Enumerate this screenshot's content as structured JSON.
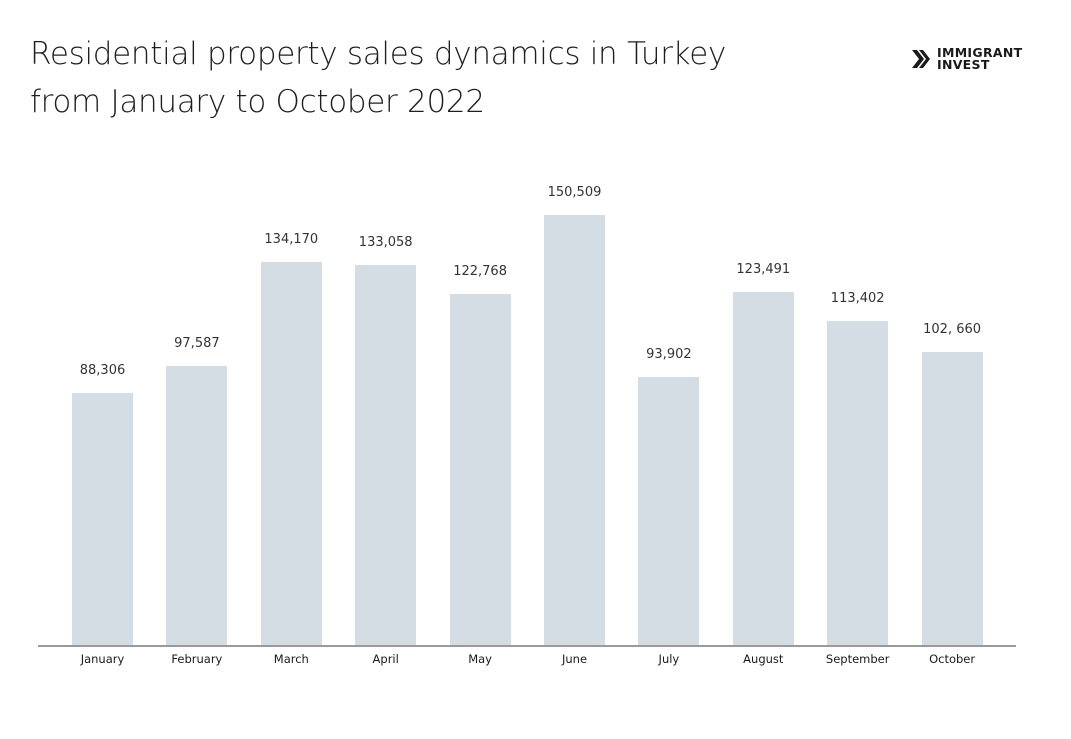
{
  "title": {
    "line1": "Residential property sales dynamics in Turkey",
    "line2": "from January to October 2022"
  },
  "logo": {
    "icon": "double-chevron-right-icon",
    "line1": "IMMIGRANT",
    "line2": "INVEST"
  },
  "colors": {
    "bar": "#d3dde3",
    "axis": "#9a9a9a",
    "text": "#1e1e1e"
  },
  "chart_data": {
    "type": "bar",
    "title": "Residential property sales dynamics in Turkey from January to October 2022",
    "xlabel": "",
    "ylabel": "",
    "categories": [
      "January",
      "February",
      "March",
      "April",
      "May",
      "June",
      "July",
      "August",
      "September",
      "October"
    ],
    "values": [
      88306,
      97587,
      134170,
      133058,
      122768,
      150509,
      93902,
      123491,
      113402,
      102660
    ],
    "value_labels": [
      "88,306",
      "97,587",
      "134,170",
      "133,058",
      "122,768",
      "150,509",
      "93,902",
      "123,491",
      "113,402",
      "102, 660"
    ],
    "ylim": [
      0,
      150509
    ],
    "grid": false,
    "legend": "none",
    "y_axis_visible": false
  }
}
